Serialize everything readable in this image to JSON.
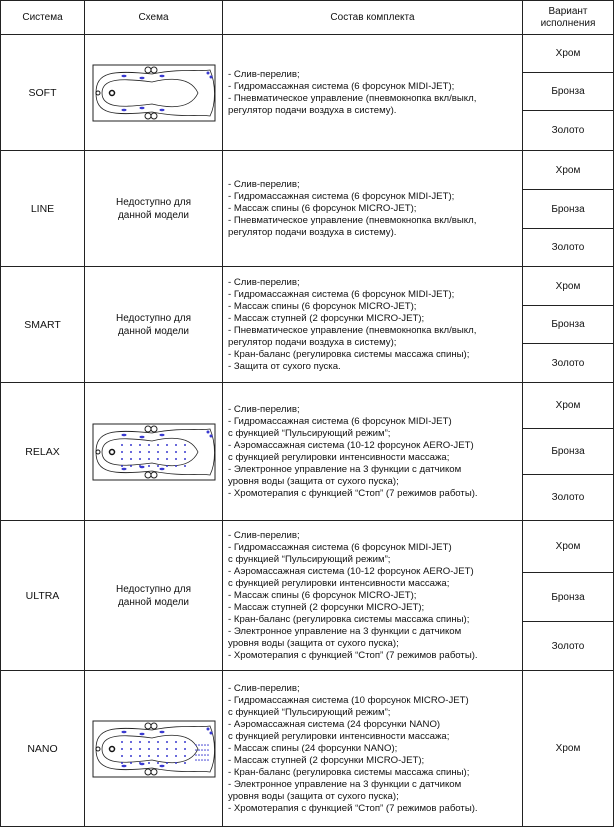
{
  "headers": {
    "system": "Система",
    "schema": "Схема",
    "contents": "Состав комплекта",
    "variant": "Вариант исполнения"
  },
  "unavailable": "Недоступно для данной модели",
  "rows": [
    {
      "system": "SOFT",
      "schema": "image",
      "contents": [
        "- Слив-перелив;",
        "- Гидромассажная система (6 форсунок MIDI-JET);",
        "- Пневматическое управление (пневмокнопка вкл/выкл,",
        "регулятор подачи воздуха в систему)."
      ],
      "variants": [
        "Хром",
        "Бронза",
        "Золото"
      ]
    },
    {
      "system": "LINE",
      "schema": "unavailable",
      "contents": [
        "- Слив-перелив;",
        "- Гидромассажная система (6 форсунок MIDI-JET);",
        "- Массаж спины (6 форсунок MICRO-JET);",
        "- Пневматическое управление (пневмокнопка вкл/выкл,",
        "регулятор подачи воздуха в систему)."
      ],
      "variants": [
        "Хром",
        "Бронза",
        "Золото"
      ]
    },
    {
      "system": "SMART",
      "schema": "unavailable",
      "contents": [
        "- Слив-перелив;",
        "- Гидромассажная система (6 форсунок MIDI-JET);",
        "- Массаж спины (6 форсунок MICRO-JET);",
        "- Массаж ступней (2 форсунки MICRO-JET);",
        "- Пневматическое управление (пневмокнопка вкл/выкл,",
        "регулятор подачи воздуха в систему);",
        "- Кран-баланс (регулировка системы массажа спины);",
        "- Защита от сухого пуска."
      ],
      "variants": [
        "Хром",
        "Бронза",
        "Золото"
      ]
    },
    {
      "system": "RELAX",
      "schema": "image",
      "contents": [
        "- Слив-перелив;",
        "- Гидромассажная система (6 форсунок MIDI-JET)",
        "с функцией “Пульсирующий режим”;",
        "- Аэромассажная система (10-12 форсунок AERO-JET)",
        "с функцией регулировки интенсивности массажа;",
        "- Электронное управление на 3 функции с датчиком",
        "уровня воды (защита от сухого пуска);",
        "- Хромотерапия с функцией “Стоп” (7 режимов работы)."
      ],
      "variants": [
        "Хром",
        "Бронза",
        "Золото"
      ]
    },
    {
      "system": "ULTRA",
      "schema": "unavailable",
      "contents": [
        "- Слив-перелив;",
        "- Гидромассажная система (6 форсунок MIDI-JET)",
        "с функцией “Пульсирующий режим”;",
        "- Аэромассажная система (10-12 форсунок AERO-JET)",
        "с функцией регулировки интенсивности массажа;",
        "- Массаж спины (6 форсунок MICRO-JET);",
        "- Массаж ступней (2 форсунки MICRO-JET);",
        "- Кран-баланс (регулировка системы массажа спины);",
        "- Электронное управление на 3 функции с датчиком",
        "уровня воды (защита от сухого пуска);",
        "- Хромотерапия с функцией “Стоп” (7 режимов работы)."
      ],
      "variants": [
        "Хром",
        "Бронза",
        "Золото"
      ]
    },
    {
      "system": "NANO",
      "schema": "image",
      "contents": [
        "- Слив-перелив;",
        "- Гидромассажная система (10 форсунок MICRO-JET)",
        "с функцией “Пульсирующий режим”;",
        "- Аэромассажная система (24 форсунки NANO)",
        "с функцией регулировки интенсивности массажа;",
        "- Массаж спины (24 форсунки NANO);",
        "- Массаж ступней (2 форсунки MICRO-JET);",
        "- Кран-баланс (регулировка системы массажа спины);",
        "- Электронное управление на 3 функции с датчиком",
        "уровня воды (защита от сухого пуска);",
        "- Хромотерапия с функцией “Стоп” (7 режимов работы)."
      ],
      "variants": [
        "Хром"
      ]
    }
  ],
  "colors": {
    "jet": "#3a3ad0",
    "border": "#222222"
  }
}
